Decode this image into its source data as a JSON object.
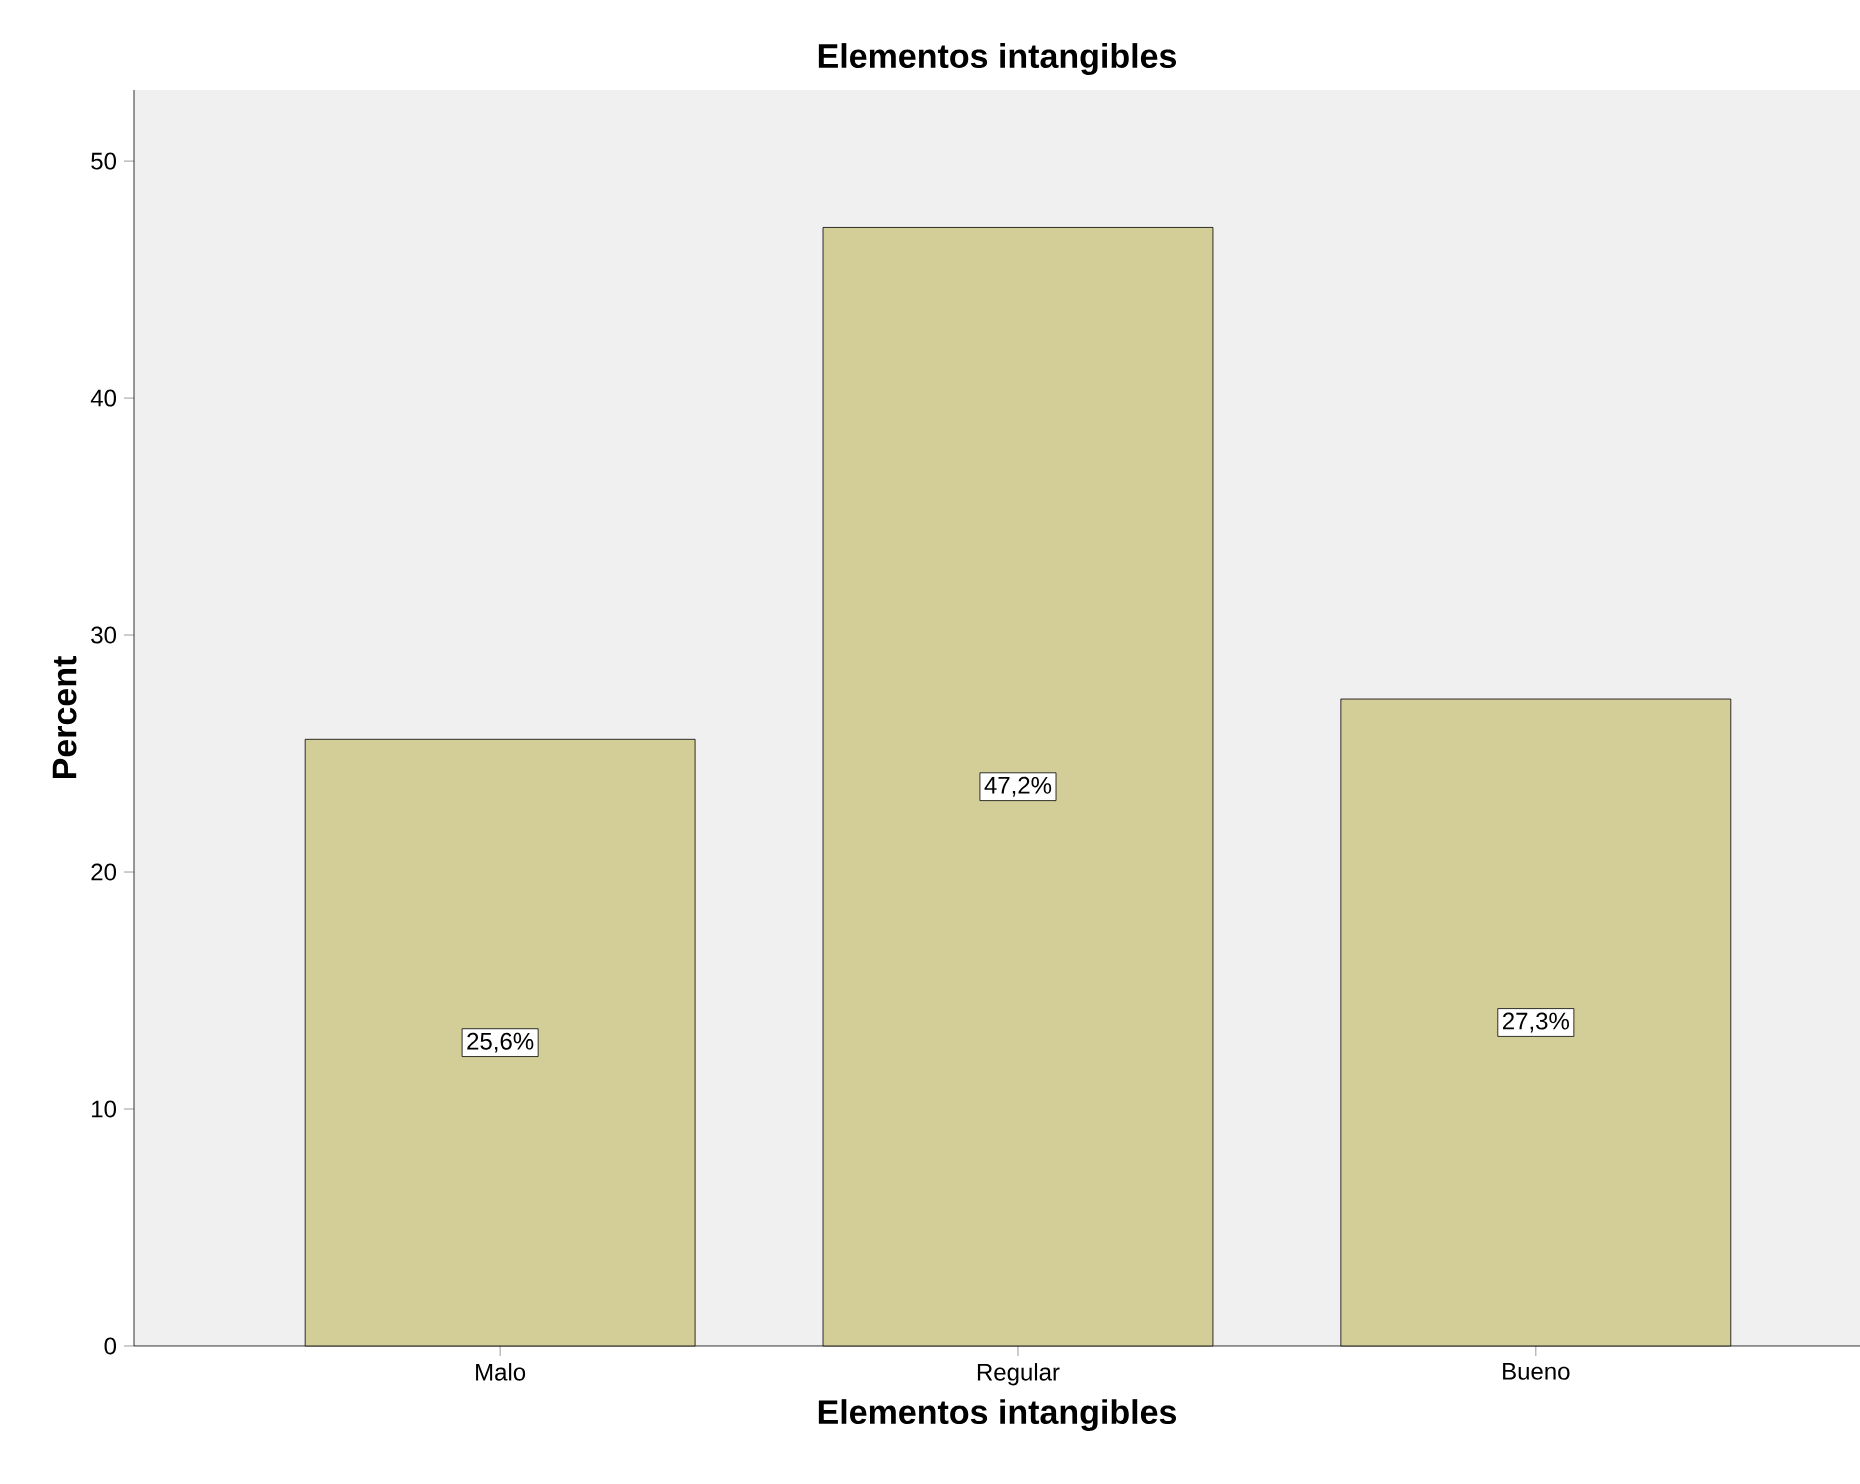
{
  "chart_data": {
    "type": "bar",
    "title": "Elementos intangibles",
    "xlabel": "Elementos intangibles",
    "ylabel": "Percent",
    "categories": [
      "Malo",
      "Regular",
      "Bueno"
    ],
    "values": [
      25.6,
      47.2,
      27.3
    ],
    "value_labels": [
      "25,6%",
      "47,2%",
      "27,3%"
    ],
    "color": "#d3ce97",
    "ylim": [
      0,
      53
    ],
    "yticks": [
      0,
      10,
      20,
      30,
      40,
      50
    ]
  }
}
